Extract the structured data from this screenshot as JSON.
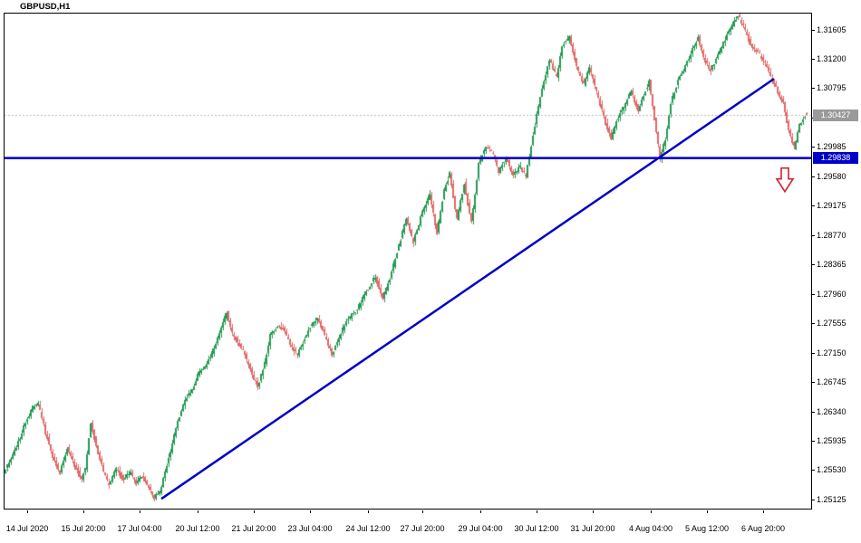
{
  "window": {
    "title": "GBPUSD,H1"
  },
  "chart_data": {
    "type": "candlestick",
    "symbol": "GBPUSD",
    "timeframe": "H1",
    "title": "GBPUSD,H1",
    "bars": 443,
    "ylim": [
      1.25005,
      1.3183
    ],
    "grid": "off",
    "legend": "none",
    "current_price": "1.30427",
    "y_axis_labels": [
      "1.31605",
      "1.31200",
      "1.30795",
      "1.30390",
      "1.29985",
      "1.29580",
      "1.29175",
      "1.28770",
      "1.28365",
      "1.27960",
      "1.27555",
      "1.27150",
      "1.26745",
      "1.26340",
      "1.25935",
      "1.25530",
      "1.25125"
    ],
    "x_axis_labels": [
      {
        "label": "14 Jul 2020",
        "bar": 12
      },
      {
        "label": "15 Jul 20:00",
        "bar": 43
      },
      {
        "label": "17 Jul 04:00",
        "bar": 74
      },
      {
        "label": "20 Jul 12:00",
        "bar": 106
      },
      {
        "label": "21 Jul 20:00",
        "bar": 137
      },
      {
        "label": "23 Jul 04:00",
        "bar": 168
      },
      {
        "label": "24 Jul 12:00",
        "bar": 200
      },
      {
        "label": "27 Jul 20:00",
        "bar": 230
      },
      {
        "label": "29 Jul 04:00",
        "bar": 262
      },
      {
        "label": "30 Jul 12:00",
        "bar": 293
      },
      {
        "label": "31 Jul 20:00",
        "bar": 324
      },
      {
        "label": "4 Aug 04:00",
        "bar": 356
      },
      {
        "label": "5 Aug 12:00",
        "bar": 387
      },
      {
        "label": "6 Aug 20:00",
        "bar": 418
      }
    ],
    "price_path_anchors": [
      [
        0,
        1.255
      ],
      [
        4,
        1.257
      ],
      [
        8,
        1.2592
      ],
      [
        12,
        1.262
      ],
      [
        16,
        1.264
      ],
      [
        19,
        1.2646
      ],
      [
        23,
        1.2605
      ],
      [
        27,
        1.2572
      ],
      [
        31,
        1.255
      ],
      [
        35,
        1.2585
      ],
      [
        39,
        1.256
      ],
      [
        43,
        1.2542
      ],
      [
        45,
        1.2556
      ],
      [
        48,
        1.262
      ],
      [
        51,
        1.2586
      ],
      [
        55,
        1.255
      ],
      [
        58,
        1.2532
      ],
      [
        62,
        1.2556
      ],
      [
        66,
        1.254
      ],
      [
        70,
        1.255
      ],
      [
        73,
        1.2533
      ],
      [
        76,
        1.2546
      ],
      [
        80,
        1.253
      ],
      [
        83,
        1.2516
      ],
      [
        86,
        1.2522
      ],
      [
        88,
        1.2542
      ],
      [
        92,
        1.258
      ],
      [
        96,
        1.262
      ],
      [
        100,
        1.265
      ],
      [
        104,
        1.2665
      ],
      [
        108,
        1.269
      ],
      [
        112,
        1.27
      ],
      [
        116,
        1.272
      ],
      [
        120,
        1.275
      ],
      [
        123,
        1.2772
      ],
      [
        126,
        1.2742
      ],
      [
        130,
        1.2726
      ],
      [
        133,
        1.2712
      ],
      [
        137,
        1.2686
      ],
      [
        140,
        1.2668
      ],
      [
        144,
        1.27
      ],
      [
        147,
        1.274
      ],
      [
        151,
        1.2752
      ],
      [
        155,
        1.2746
      ],
      [
        158,
        1.2726
      ],
      [
        162,
        1.2712
      ],
      [
        166,
        1.2736
      ],
      [
        169,
        1.275
      ],
      [
        173,
        1.2762
      ],
      [
        177,
        1.274
      ],
      [
        181,
        1.2712
      ],
      [
        185,
        1.2736
      ],
      [
        189,
        1.276
      ],
      [
        195,
        1.2775
      ],
      [
        200,
        1.28
      ],
      [
        205,
        1.282
      ],
      [
        209,
        1.279
      ],
      [
        212,
        1.281
      ],
      [
        216,
        1.2845
      ],
      [
        222,
        1.29
      ],
      [
        226,
        1.2868
      ],
      [
        231,
        1.291
      ],
      [
        235,
        1.2933
      ],
      [
        239,
        1.288
      ],
      [
        243,
        1.294
      ],
      [
        246,
        1.2962
      ],
      [
        250,
        1.29
      ],
      [
        254,
        1.2948
      ],
      [
        258,
        1.2895
      ],
      [
        262,
        1.2975
      ],
      [
        266,
        1.3
      ],
      [
        270,
        1.299
      ],
      [
        273,
        1.2965
      ],
      [
        277,
        1.2985
      ],
      [
        281,
        1.296
      ],
      [
        285,
        1.2972
      ],
      [
        288,
        1.2958
      ],
      [
        291,
        1.3
      ],
      [
        293,
        1.303
      ],
      [
        297,
        1.308
      ],
      [
        301,
        1.312
      ],
      [
        305,
        1.3095
      ],
      [
        308,
        1.314
      ],
      [
        312,
        1.315
      ],
      [
        316,
        1.311
      ],
      [
        320,
        1.3085
      ],
      [
        323,
        1.311
      ],
      [
        327,
        1.3075
      ],
      [
        331,
        1.304
      ],
      [
        335,
        1.301
      ],
      [
        338,
        1.3035
      ],
      [
        342,
        1.3055
      ],
      [
        346,
        1.3075
      ],
      [
        350,
        1.305
      ],
      [
        353,
        1.307
      ],
      [
        356,
        1.309
      ],
      [
        360,
        1.302
      ],
      [
        362,
        1.2984
      ],
      [
        365,
        1.301
      ],
      [
        368,
        1.306
      ],
      [
        372,
        1.309
      ],
      [
        376,
        1.311
      ],
      [
        380,
        1.3135
      ],
      [
        383,
        1.315
      ],
      [
        386,
        1.312
      ],
      [
        390,
        1.3105
      ],
      [
        395,
        1.313
      ],
      [
        400,
        1.316
      ],
      [
        405,
        1.318
      ],
      [
        408,
        1.3165
      ],
      [
        412,
        1.314
      ],
      [
        416,
        1.313
      ],
      [
        420,
        1.3115
      ],
      [
        423,
        1.3095
      ],
      [
        426,
        1.308
      ],
      [
        430,
        1.306
      ],
      [
        433,
        1.302
      ],
      [
        436,
        1.2998
      ],
      [
        439,
        1.303
      ],
      [
        442,
        1.3043
      ]
    ],
    "seed": 11,
    "hline": {
      "price": 1.29838,
      "label": "1.29838"
    },
    "trendline": {
      "from": {
        "bar": 86,
        "price": 1.2514
      },
      "to": {
        "bar": 424,
        "price": 1.3093
      }
    },
    "arrow": {
      "bar": 430,
      "price_top": 1.297
    },
    "colors": {
      "up": "#259a52",
      "down": "#e06a6a",
      "line_blue": "#0000c8",
      "arrow_red": "#cc2233",
      "current_price_line": "#bbbbbb",
      "tag_gray": "#9a9a9a",
      "axis_text": "#000000",
      "background": "#ffffff"
    }
  }
}
